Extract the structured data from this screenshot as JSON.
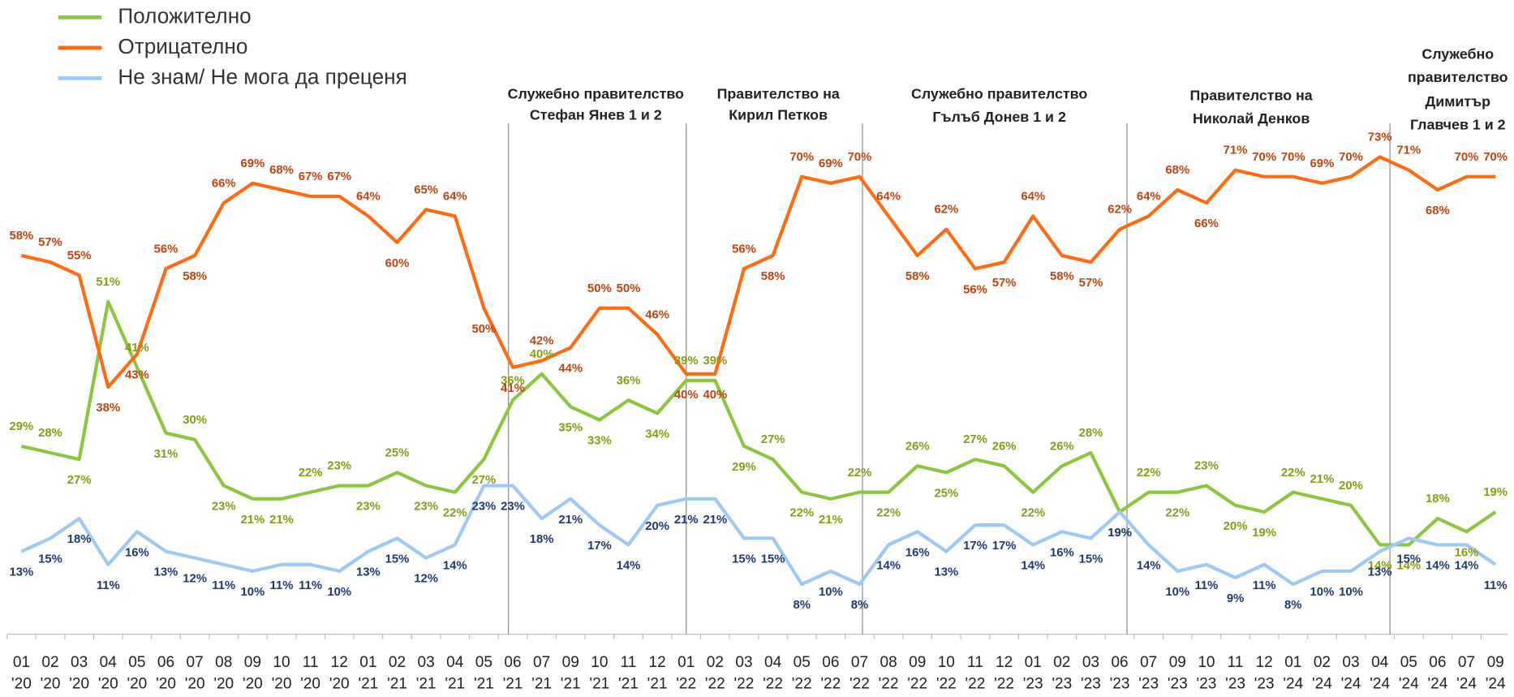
{
  "chart_data": {
    "type": "line",
    "categories": [
      "01 '20",
      "02 '20",
      "03 '20",
      "04 '20",
      "05 '20",
      "06 '20",
      "07 '20",
      "08 '20",
      "09 '20",
      "10 '20",
      "11 '20",
      "12 '20",
      "01 '21",
      "02 '21",
      "03 '21",
      "04 '21",
      "05 '21",
      "06 '21",
      "07 '21",
      "09 '21",
      "10 '21",
      "11 '21",
      "12 '21",
      "01 '22",
      "02 '22",
      "03 '22",
      "04 '22",
      "05 '22",
      "06 '22",
      "07 '22",
      "08 '22",
      "09 '22",
      "10 '22",
      "11 '22",
      "12 '22",
      "01 '23",
      "02 '23",
      "03 '23",
      "06 '23",
      "07 '23",
      "09 '23",
      "10 '23",
      "11 '23",
      "12 '23",
      "01 '24",
      "02 '24",
      "03 '24",
      "04 '24",
      "05 '24",
      "06 '24",
      "07 '24",
      "09 '24"
    ],
    "series": [
      {
        "name": "Положително",
        "color": "#8cc63f",
        "label_color": "#8a9a14",
        "values": [
          29,
          28,
          27,
          51,
          41,
          31,
          30,
          23,
          21,
          21,
          22,
          23,
          23,
          25,
          23,
          22,
          27,
          36,
          40,
          35,
          33,
          36,
          34,
          39,
          39,
          29,
          27,
          22,
          21,
          22,
          22,
          26,
          25,
          27,
          26,
          22,
          26,
          28,
          19,
          22,
          22,
          23,
          20,
          19,
          22,
          21,
          20,
          14,
          14,
          18,
          16,
          19
        ],
        "value_labels": [
          "29%",
          "28%",
          "27%",
          "51%",
          "41%",
          "31%",
          "30%",
          "23%",
          "21%",
          "21%",
          "22%",
          "23%",
          "23%",
          "25%",
          "23%",
          "22%",
          "27%",
          "36%",
          "40%",
          "35%",
          "33%",
          "36%",
          "34%",
          "39%",
          "39%",
          "29%",
          "27%",
          "22%",
          "21%",
          "22%",
          "22%",
          "26%",
          "25%",
          "27%",
          "26%",
          "22%",
          "26%",
          "28%",
          "19%",
          "22%",
          "22%",
          "23%",
          "20%",
          "19%",
          "22%",
          "21%",
          "20%",
          "14%",
          "14%",
          "18%",
          "16%",
          "19%"
        ]
      },
      {
        "name": "Отрицателно",
        "color": "#ff6a13",
        "label_color": "#c0440f",
        "values": [
          58,
          57,
          55,
          38,
          43,
          56,
          58,
          66,
          69,
          68,
          67,
          67,
          64,
          60,
          65,
          64,
          50,
          41,
          42,
          44,
          50,
          50,
          46,
          40,
          40,
          56,
          58,
          70,
          69,
          70,
          64,
          58,
          62,
          56,
          57,
          64,
          58,
          57,
          62,
          64,
          68,
          66,
          71,
          70,
          70,
          69,
          70,
          73,
          71,
          68,
          70,
          70
        ],
        "value_labels": [
          "58%",
          "57%",
          "55%",
          "38%",
          "43%",
          "56%",
          "58%",
          "66%",
          "69%",
          "68%",
          "67%",
          "67%",
          "64%",
          "60%",
          "65%",
          "64%",
          "50%",
          "41%",
          "42%",
          "44%",
          "50%",
          "50%",
          "46%",
          "40%",
          "40%",
          "56%",
          "58%",
          "70%",
          "69%",
          "70%",
          "64%",
          "58%",
          "62%",
          "56%",
          "57%",
          "64%",
          "58%",
          "57%",
          "62%",
          "64%",
          "68%",
          "66%",
          "71%",
          "70%",
          "70%",
          "69%",
          "70%",
          "73%",
          "71%",
          "68%",
          "70%",
          "70%"
        ]
      },
      {
        "name": "Не знам/ Не мога да преценя",
        "color": "#9dc9f5",
        "label_color": "#1f3a6e",
        "values": [
          13,
          15,
          18,
          11,
          16,
          13,
          12,
          11,
          10,
          11,
          11,
          10,
          13,
          15,
          12,
          14,
          23,
          23,
          18,
          21,
          17,
          14,
          20,
          21,
          21,
          15,
          15,
          8,
          10,
          8,
          14,
          16,
          13,
          17,
          17,
          14,
          16,
          15,
          19,
          14,
          10,
          11,
          9,
          11,
          8,
          10,
          10,
          13,
          15,
          14,
          14,
          11
        ],
        "value_labels": [
          "13%",
          "15%",
          "18%",
          "11%",
          "16%",
          "13%",
          "12%",
          "11%",
          "10%",
          "11%",
          "11%",
          "10%",
          "13%",
          "15%",
          "12%",
          "14%",
          "23%",
          "23%",
          "18%",
          "21%",
          "17%",
          "14%",
          "20%",
          "21%",
          "21%",
          "15%",
          "15%",
          "8%",
          "10%",
          "8%",
          "14%",
          "16%",
          "13%",
          "17%",
          "17%",
          "14%",
          "16%",
          "15%",
          "19%",
          "14%",
          "10%",
          "11%",
          "9%",
          "11%",
          "8%",
          "10%",
          "10%",
          "13%",
          "15%",
          "14%",
          "14%",
          "11%"
        ]
      }
    ],
    "annotations": [
      [
        "Служебно правителство",
        "Стефан Янев 1 и 2"
      ],
      [
        "Правителство на",
        "Кирил Петков"
      ],
      [
        "Служебно правителство",
        "Гълъб Донев 1 и 2"
      ],
      [
        "Правителство на",
        "Николай Денков"
      ],
      [
        "Служебно",
        "правителство",
        "Димитър",
        "Главчев 1 и 2"
      ]
    ]
  }
}
